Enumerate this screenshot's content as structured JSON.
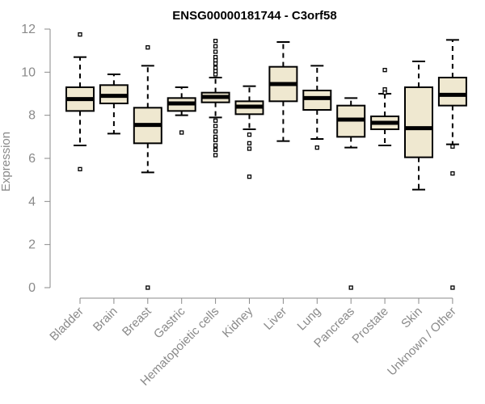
{
  "chart_data": {
    "type": "boxplot",
    "title": "ENSG00000181744 - C3orf58",
    "ylabel": "Expression",
    "xlabel": "",
    "ylim": [
      0,
      12
    ],
    "yticks": [
      0,
      2,
      4,
      6,
      8,
      10,
      12
    ],
    "grid": false,
    "box_fill": "#efe8d0",
    "box_stroke": "#000000",
    "axis_color": "#8a8a8a",
    "categories": [
      "Bladder",
      "Brain",
      "Breast",
      "Gastric",
      "Hematopoietic cells",
      "Kidney",
      "Liver",
      "Lung",
      "Pancreas",
      "Prostate",
      "Skin",
      "Unknown / Other"
    ],
    "boxes": [
      {
        "whisker_low": 6.6,
        "q1": 8.2,
        "median": 8.75,
        "q3": 9.3,
        "whisker_high": 10.7,
        "outliers": [
          11.75,
          5.5
        ]
      },
      {
        "whisker_low": 7.15,
        "q1": 8.55,
        "median": 8.9,
        "q3": 9.4,
        "whisker_high": 9.9,
        "outliers": []
      },
      {
        "whisker_low": 5.35,
        "q1": 6.7,
        "median": 7.55,
        "q3": 8.35,
        "whisker_high": 10.3,
        "outliers": [
          11.15,
          0.0
        ]
      },
      {
        "whisker_low": 8.0,
        "q1": 8.2,
        "median": 8.55,
        "q3": 8.8,
        "whisker_high": 9.3,
        "outliers": [
          7.2
        ]
      },
      {
        "whisker_low": 7.9,
        "q1": 8.6,
        "median": 8.85,
        "q3": 9.05,
        "whisker_high": 9.75,
        "outliers": [
          11.45,
          11.2,
          10.95,
          10.7,
          10.55,
          10.4,
          10.2,
          10.05,
          9.9,
          7.75,
          7.5,
          7.25,
          7.0,
          6.85,
          6.6,
          6.4,
          6.15
        ]
      },
      {
        "whisker_low": 7.35,
        "q1": 8.05,
        "median": 8.4,
        "q3": 8.65,
        "whisker_high": 9.35,
        "outliers": [
          7.1,
          6.7,
          6.45,
          5.15
        ]
      },
      {
        "whisker_low": 6.8,
        "q1": 8.65,
        "median": 9.45,
        "q3": 10.25,
        "whisker_high": 11.4,
        "outliers": []
      },
      {
        "whisker_low": 6.9,
        "q1": 8.25,
        "median": 8.8,
        "q3": 9.15,
        "whisker_high": 10.3,
        "outliers": [
          6.5
        ]
      },
      {
        "whisker_low": 6.5,
        "q1": 7.0,
        "median": 7.8,
        "q3": 8.45,
        "whisker_high": 8.8,
        "outliers": [
          0.0
        ]
      },
      {
        "whisker_low": 6.6,
        "q1": 7.35,
        "median": 7.65,
        "q3": 7.95,
        "whisker_high": 9.0,
        "outliers": [
          10.1,
          9.2,
          9.05
        ]
      },
      {
        "whisker_low": 4.55,
        "q1": 6.05,
        "median": 7.4,
        "q3": 9.3,
        "whisker_high": 10.5,
        "outliers": []
      },
      {
        "whisker_low": 6.65,
        "q1": 8.45,
        "median": 8.95,
        "q3": 9.75,
        "whisker_high": 11.5,
        "outliers": [
          6.55,
          5.3,
          0.0
        ]
      }
    ]
  }
}
